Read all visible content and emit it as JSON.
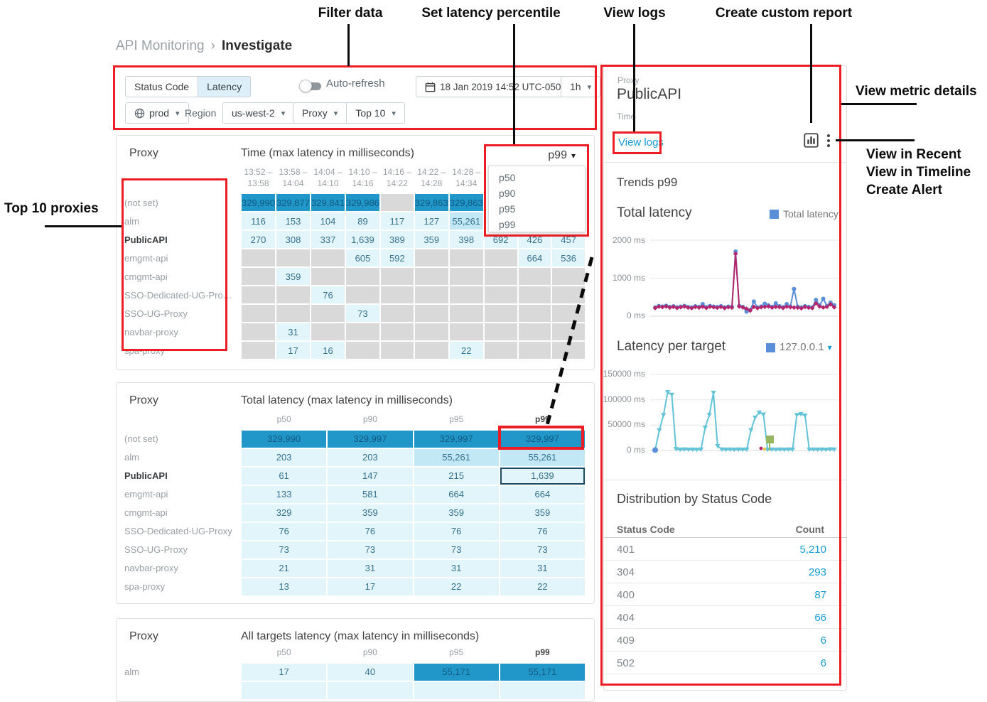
{
  "colors": {
    "annotation_red": "#ec1d25",
    "cell_dark": "#2196c8",
    "cell_light": "#e2f5fb",
    "cell_mid": "#c2e8f6",
    "cell_empty": "#d9d9d9",
    "cell_dark_text": "#115a80",
    "cell_light_text": "#35718e",
    "link_blue": "#169bd5",
    "series_blue": "#5b8ed8",
    "series_magenta": "#b5256e",
    "series_cyan": "#63c3d7",
    "flag_green": "#96b75d"
  },
  "annotations": {
    "filter_data": "Filter data",
    "set_latency_percentile": "Set latency percentile",
    "view_logs": "View logs",
    "create_custom_report": "Create custom report",
    "view_metric_details": "View metric details",
    "kebab_menu": [
      "View in Recent",
      "View in Timeline",
      "Create Alert"
    ],
    "top_10_proxies": "Top 10 proxies"
  },
  "breadcrumb": {
    "section": "API Monitoring",
    "separator": "›",
    "page": "Investigate"
  },
  "filter_bar": {
    "metric_tabs": [
      {
        "label": "Status Code",
        "selected": false
      },
      {
        "label": "Latency",
        "selected": true
      }
    ],
    "auto_refresh_label": "Auto-refresh",
    "auto_refresh_on": false,
    "datetime": "18 Jan 2019 14:52 UTC-0500",
    "interval": "1h",
    "environment": "prod",
    "region_label": "Region",
    "region": "us-west-2",
    "dimension": "Proxy",
    "top_filter": "Top 10"
  },
  "time_matrix": {
    "left_header": "Proxy",
    "title": "Time (max latency in milliseconds)",
    "selected_percentile": "p99",
    "percentile_options": [
      "p50",
      "p90",
      "p95",
      "p99"
    ],
    "columns": [
      [
        "13:52 –",
        "13:58"
      ],
      [
        "13:58 –",
        "14:04"
      ],
      [
        "14:04 –",
        "14:10"
      ],
      [
        "14:10 –",
        "14:16"
      ],
      [
        "14:16 –",
        "14:22"
      ],
      [
        "14:22 –",
        "14:28"
      ],
      [
        "14:28 –",
        "14:34"
      ],
      [
        "",
        ""
      ],
      [
        "",
        ""
      ],
      [
        "",
        ""
      ]
    ],
    "rows": [
      {
        "proxy": "(not set)",
        "bold": false,
        "cells": [
          "329,990|dark",
          "329,877|dark",
          "329,841|dark",
          "329,986|dark",
          "|empty",
          "329,863|dark",
          "329,863|dark",
          "|empty",
          "|empty",
          "|empty"
        ]
      },
      {
        "proxy": "alm",
        "bold": false,
        "cells": [
          "116|light",
          "153|light",
          "104|light",
          "89|light",
          "117|light",
          "127|light",
          "55,261|mid",
          "|empty",
          "|empty",
          "|empty"
        ]
      },
      {
        "proxy": "PublicAPI",
        "bold": true,
        "cells": [
          "270|light",
          "308|light",
          "337|light",
          "1,639|light",
          "389|light",
          "359|light",
          "398|light",
          "692|light",
          "426|light",
          "457|light"
        ]
      },
      {
        "proxy": "emgmt-api",
        "bold": false,
        "cells": [
          "|empty",
          "|empty",
          "|empty",
          "605|light",
          "592|light",
          "|empty",
          "|empty",
          "|empty",
          "664|light",
          "536|light"
        ]
      },
      {
        "proxy": "cmgmt-api",
        "bold": false,
        "cells": [
          "|empty",
          "359|light",
          "|empty",
          "|empty",
          "|empty",
          "|empty",
          "|empty",
          "|empty",
          "|empty",
          "|empty"
        ]
      },
      {
        "proxy": "SSO-Dedicated-UG-Pro…",
        "bold": false,
        "cells": [
          "|empty",
          "|empty",
          "76|light",
          "|empty",
          "|empty",
          "|empty",
          "|empty",
          "|empty",
          "|empty",
          "|empty"
        ]
      },
      {
        "proxy": "SSO-UG-Proxy",
        "bold": false,
        "cells": [
          "|empty",
          "|empty",
          "|empty",
          "73|light",
          "|empty",
          "|empty",
          "|empty",
          "|empty",
          "|empty",
          "|empty"
        ]
      },
      {
        "proxy": "navbar-proxy",
        "bold": false,
        "cells": [
          "|empty",
          "31|light",
          "|empty",
          "|empty",
          "|empty",
          "|empty",
          "|empty",
          "|empty",
          "|empty",
          "|empty"
        ]
      },
      {
        "proxy": "spa-proxy",
        "bold": false,
        "cells": [
          "|empty",
          "17|light",
          "16|light",
          "|empty",
          "|empty",
          "|empty",
          "22|light",
          "|empty",
          "|empty",
          "|empty"
        ]
      }
    ]
  },
  "total_latency_table": {
    "left_header": "Proxy",
    "title": "Total latency (max latency in milliseconds)",
    "columns": [
      {
        "label": "p50",
        "bold": false
      },
      {
        "label": "p90",
        "bold": false
      },
      {
        "label": "p95",
        "bold": false
      },
      {
        "label": "p99",
        "bold": true
      }
    ],
    "rows": [
      {
        "proxy": "(not set)",
        "bold": false,
        "cells": [
          "329,990|dark",
          "329,997|dark",
          "329,997|dark",
          "329,997|dark"
        ]
      },
      {
        "proxy": "alm",
        "bold": false,
        "cells": [
          "203|light",
          "203|light",
          "55,261|mid",
          "55,261|mid"
        ]
      },
      {
        "proxy": "PublicAPI",
        "bold": true,
        "cells": [
          "61|light",
          "147|light",
          "215|light",
          "1,639|light|selected"
        ]
      },
      {
        "proxy": "emgmt-api",
        "bold": false,
        "cells": [
          "133|light",
          "581|light",
          "664|light",
          "664|light"
        ]
      },
      {
        "proxy": "cmgmt-api",
        "bold": false,
        "cells": [
          "329|light",
          "359|light",
          "359|light",
          "359|light"
        ]
      },
      {
        "proxy": "SSO-Dedicated-UG-Proxy",
        "bold": false,
        "cells": [
          "76|light",
          "76|light",
          "76|light",
          "76|light"
        ]
      },
      {
        "proxy": "SSO-UG-Proxy",
        "bold": false,
        "cells": [
          "73|light",
          "73|light",
          "73|light",
          "73|light"
        ]
      },
      {
        "proxy": "navbar-proxy",
        "bold": false,
        "cells": [
          "21|light",
          "31|light",
          "31|light",
          "31|light"
        ]
      },
      {
        "proxy": "spa-proxy",
        "bold": false,
        "cells": [
          "13|light",
          "17|light",
          "22|light",
          "22|light"
        ]
      }
    ]
  },
  "all_targets_table": {
    "left_header": "Proxy",
    "title": "All targets latency (max latency in milliseconds)",
    "columns": [
      {
        "label": "p50",
        "bold": false
      },
      {
        "label": "p90",
        "bold": false
      },
      {
        "label": "p95",
        "bold": false
      },
      {
        "label": "p99",
        "bold": true
      }
    ],
    "rows": [
      {
        "proxy": "alm",
        "bold": false,
        "cells": [
          "17|light",
          "40|light",
          "55,171|dark",
          "55,171|dark"
        ]
      },
      {
        "proxy": "",
        "bold": false,
        "cells": [
          "|light",
          "|light",
          "|light",
          "|light"
        ]
      }
    ]
  },
  "detail_panel": {
    "proxy_label": "Proxy",
    "proxy_name": "PublicAPI",
    "time_label": "Time",
    "view_logs_link": "View logs",
    "trends": {
      "heading": "Trends p99",
      "title": "Total latency",
      "legend": "Total latency",
      "chart_data": {
        "type": "line",
        "ylim": [
          0,
          2000
        ],
        "y_ticks": [
          "2000 ms",
          "1000 ms",
          "0 ms"
        ],
        "series": [
          {
            "name": "Total latency",
            "color_key": "series_blue",
            "marker": "circle",
            "values": [
              230,
              268,
              252,
              275,
              242,
              262,
              232,
              252,
              272,
              244,
              230,
              262,
              244,
              318,
              236,
              268,
              252,
              240,
              264,
              232,
              252,
              244,
              1700,
              272,
              246,
              118,
              162,
              385,
              232,
              254,
              330,
              286,
              246,
              338,
              264,
              236,
              318,
              254,
              718,
              250,
              232,
              264,
              242,
              232,
              428,
              284,
              458,
              272,
              358,
              288
            ]
          },
          {
            "name": "p99",
            "color_key": "series_magenta",
            "marker": "diamond",
            "values": [
              214,
              250,
              240,
              258,
              226,
              246,
              216,
              236,
              254,
              226,
              212,
              244,
              226,
              250,
              216,
              250,
              236,
              222,
              244,
              212,
              236,
              226,
              1642,
              254,
              230,
              198,
              146,
              246,
              212,
              236,
              246,
              258,
              226,
              246,
              240,
              216,
              250,
              236,
              228,
              226,
              206,
              244,
              222,
              212,
              338,
              256,
              230,
              246,
              310,
              236
            ]
          }
        ]
      }
    },
    "latency_per_target": {
      "title": "Latency per target",
      "legend": "127.0.0.1",
      "chart_data": {
        "type": "line",
        "ylim": [
          0,
          150000
        ],
        "y_ticks": [
          "150000 ms",
          "100000 ms",
          "50000 ms",
          "0 ms"
        ],
        "series": [
          {
            "name": "127.0.0.1",
            "color_key": "series_cyan",
            "marker": "triangle-down",
            "values": [
              800,
              40000,
              70000,
              115000,
              110000,
              3000,
              1800,
              2200,
              1900,
              2100,
              1700,
              2100,
              45000,
              70000,
              114000,
              9000,
              2100,
              1800,
              2100,
              1700,
              2100,
              1900,
              2100,
              40000,
              65000,
              75000,
              71000,
              1800,
              2100,
              1900,
              2100,
              1700,
              2100,
              1900,
              70000,
              72000,
              69000,
              1800,
              2100,
              1900,
              2100,
              1700,
              2400,
              2100
            ]
          }
        ]
      }
    },
    "distribution": {
      "title": "Distribution by Status Code",
      "code_header": "Status Code",
      "count_header": "Count",
      "rows": [
        {
          "code": "401",
          "count": "5,210"
        },
        {
          "code": "304",
          "count": "293"
        },
        {
          "code": "400",
          "count": "87"
        },
        {
          "code": "404",
          "count": "66"
        },
        {
          "code": "409",
          "count": "6"
        },
        {
          "code": "502",
          "count": "6"
        }
      ]
    }
  }
}
